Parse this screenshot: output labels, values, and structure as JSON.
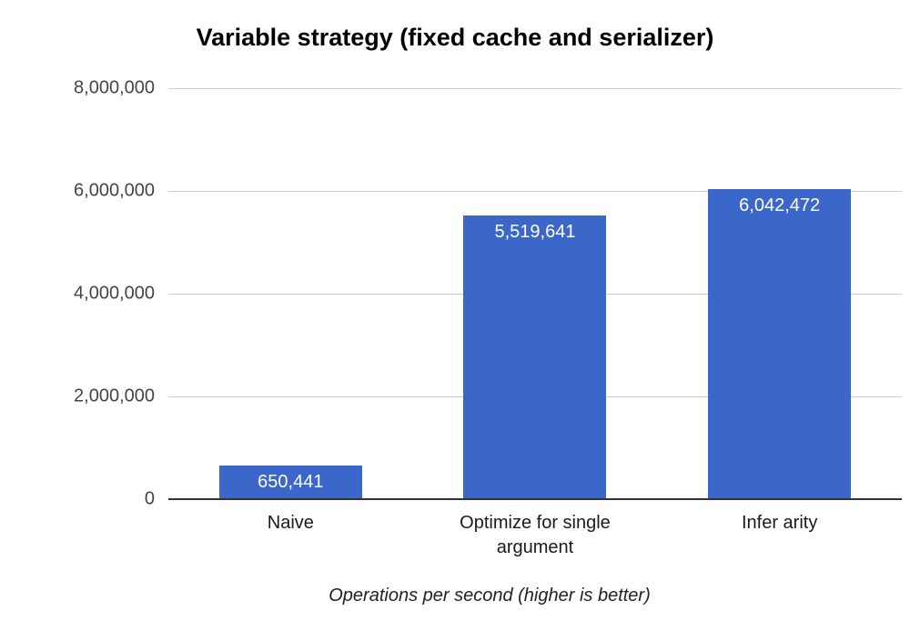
{
  "chart_data": {
    "type": "bar",
    "title": "Variable strategy (fixed cache and serializer)",
    "xlabel": "Operations per second (higher is better)",
    "ylabel": "",
    "categories": [
      "Naive",
      "Optimize for single argument",
      "Infer arity"
    ],
    "values": [
      650441,
      5519641,
      6042472
    ],
    "value_labels": [
      "650,441",
      "5,519,641",
      "6,042,472"
    ],
    "ylim": [
      0,
      8000000
    ],
    "y_tick_values": [
      8000000,
      6000000,
      4000000,
      2000000,
      0
    ],
    "y_tick_labels": [
      "8,000,000",
      "6,000,000",
      "4,000,000",
      "2,000,000",
      "0"
    ],
    "grid": "horizontal",
    "legend": "none",
    "bar_color": "#3b67cb",
    "label_color": "#ffffff"
  }
}
